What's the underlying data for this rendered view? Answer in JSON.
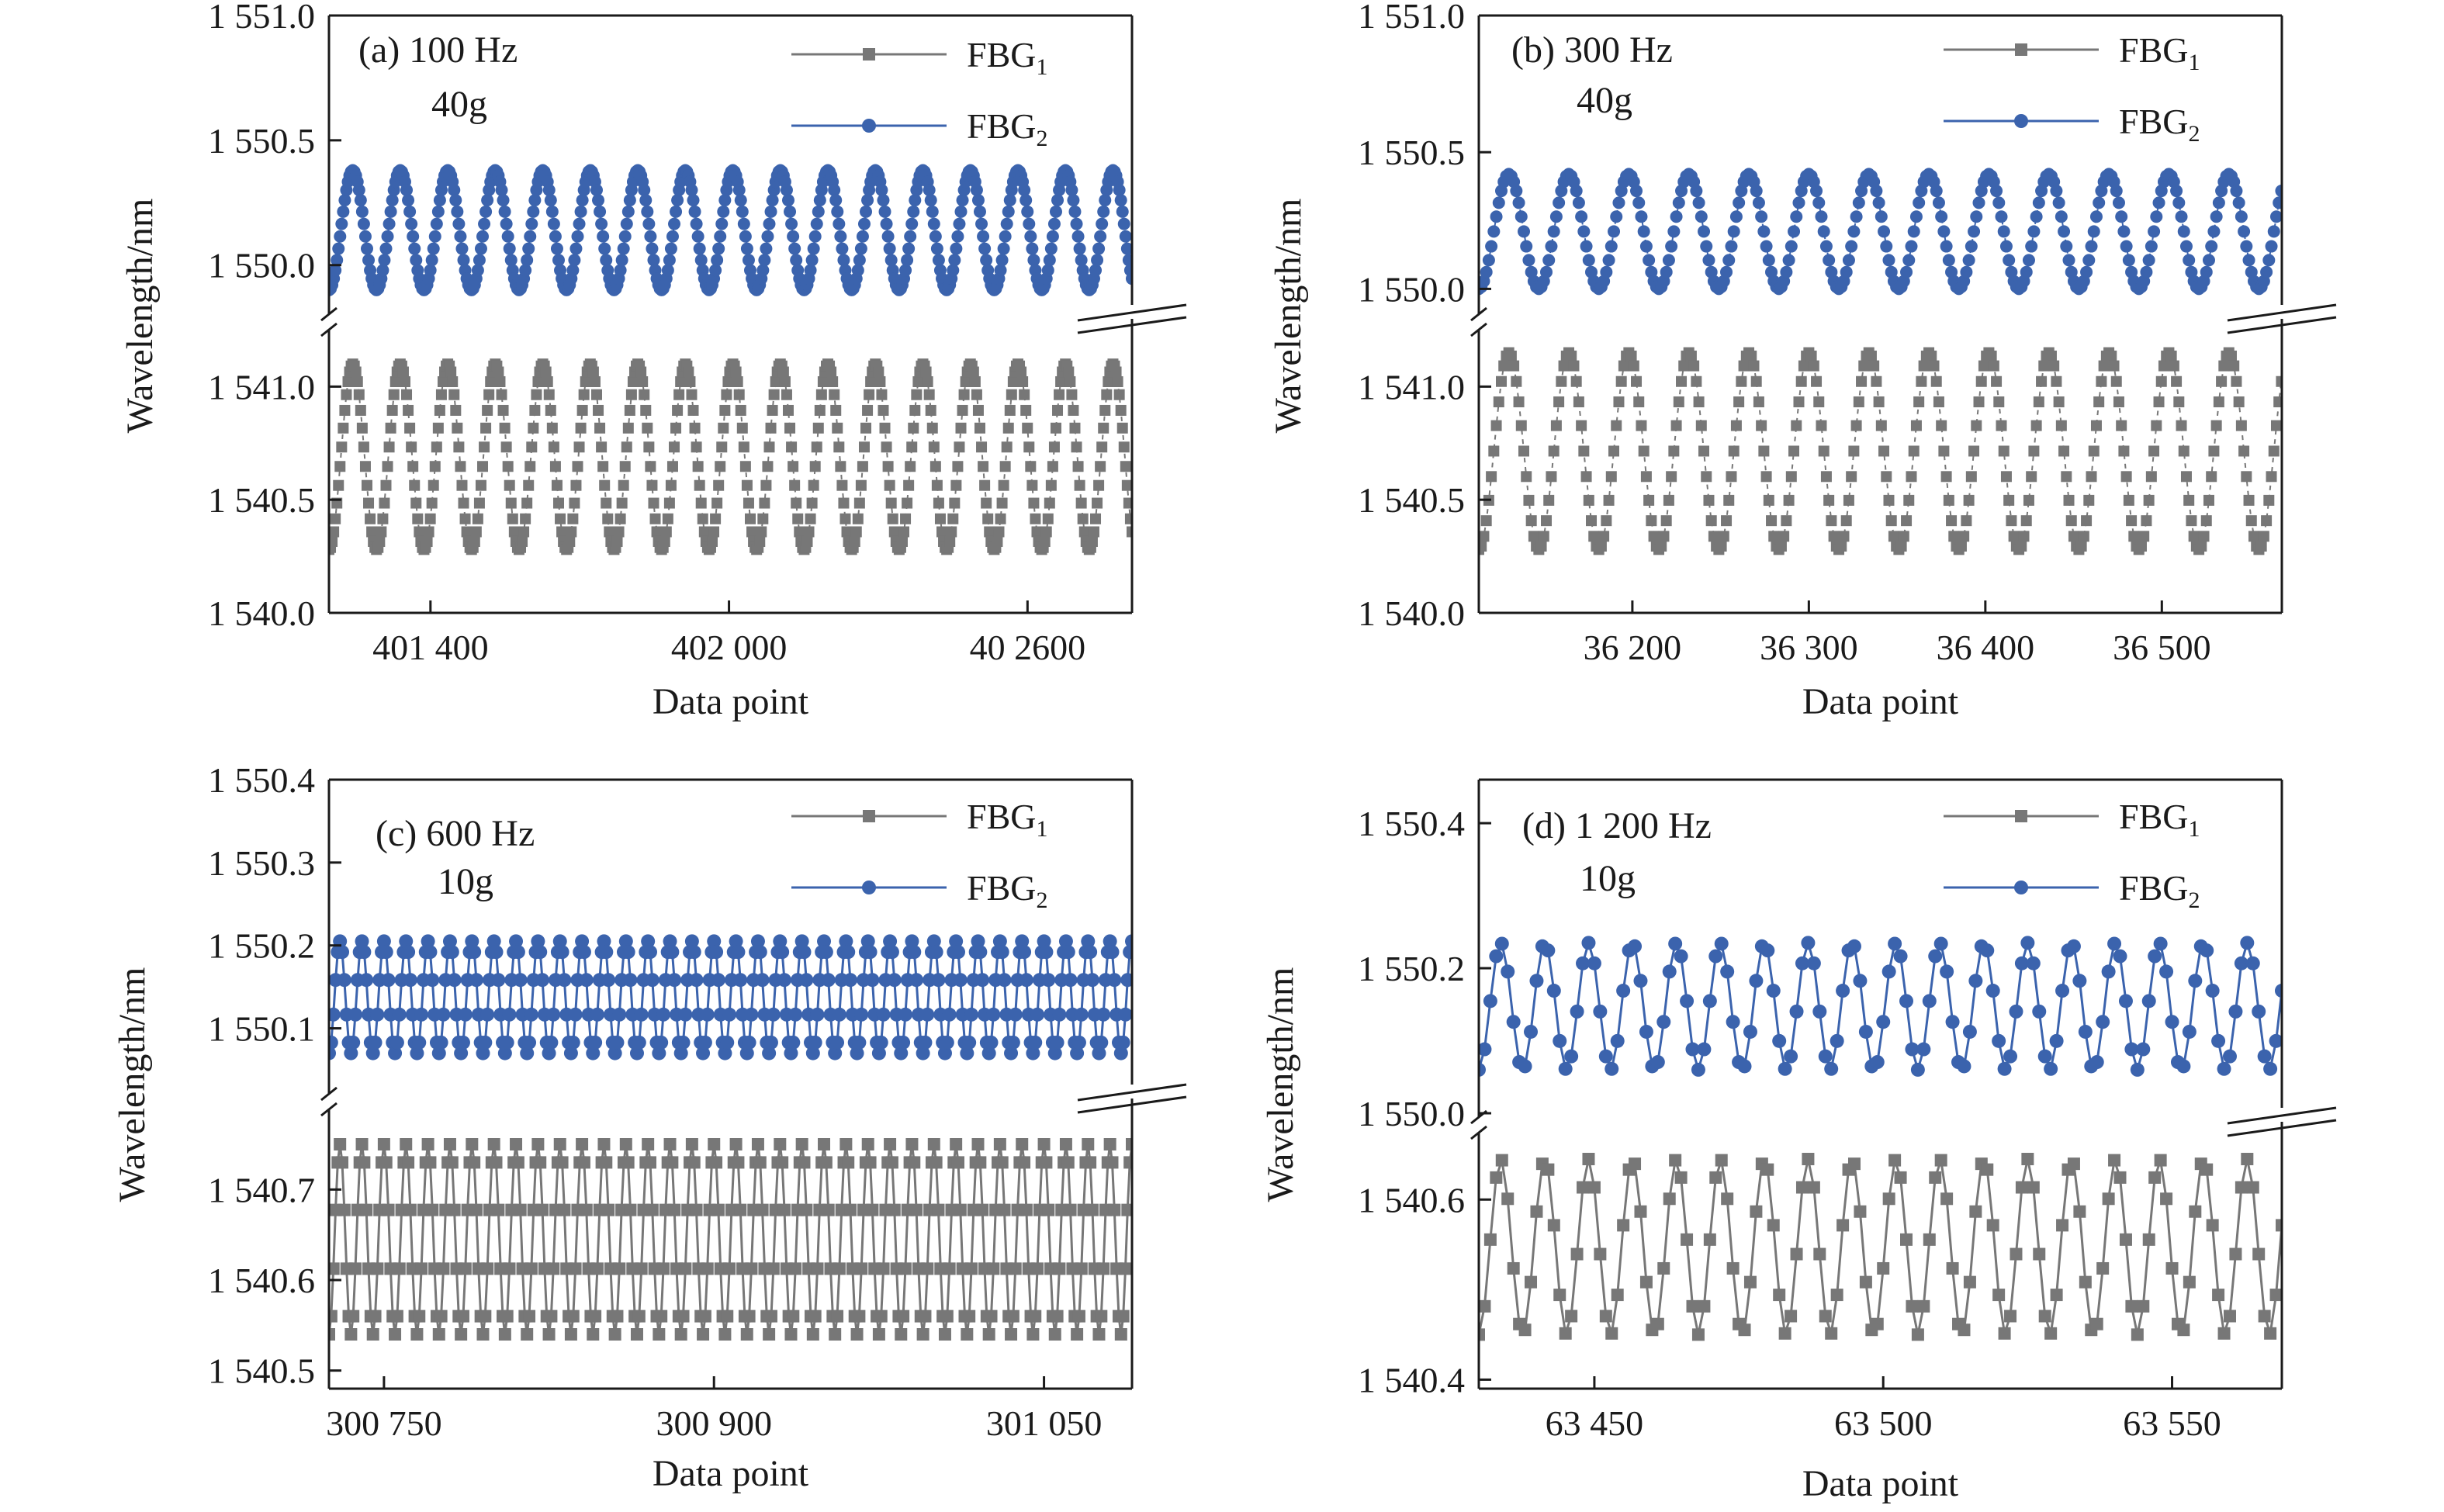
{
  "colors": {
    "fbg1": "#777777",
    "fbg2": "#3b63ad",
    "axis": "#1a1a1a"
  },
  "chart_data": [
    {
      "type": "line",
      "title": "(a) 100 Hz",
      "subtitle": "40g",
      "xlabel": "Data point",
      "ylabel": "Wavelength/nm",
      "broken_y_axis": true,
      "xlim": [
        401196,
        402810
      ],
      "ylim_upper": [
        1549.85,
        1551.0
      ],
      "ylim_lower": [
        1540.0,
        1541.2
      ],
      "xticks": [
        401400,
        402000,
        402600
      ],
      "xtick_labels": [
        "401 400",
        "402 000",
        "40 2600"
      ],
      "yticks_upper": [
        1550.0,
        1550.5,
        1551.0
      ],
      "ytick_labels_upper": [
        "1 550.0",
        "1 550.5",
        "1 551.0"
      ],
      "yticks_lower": [
        1540.0,
        1540.5,
        1541.0
      ],
      "ytick_labels_lower": [
        "1 540.0",
        "1 540.5",
        "1 541.0"
      ],
      "legend": "top-right",
      "series": [
        {
          "name": "FBG1",
          "name_main": "FBG",
          "name_sub": "1",
          "marker": "square",
          "min": 1540.28,
          "max": 1541.1,
          "period": 95.5,
          "phase": 0.0,
          "points_per_cycle": 30,
          "line": false
        },
        {
          "name": "FBG2",
          "name_main": "FBG",
          "name_sub": "2",
          "marker": "circle",
          "min": 1549.9,
          "max": 1550.38,
          "period": 95.5,
          "phase": 0.0,
          "points_per_cycle": 30,
          "line": false
        }
      ]
    },
    {
      "type": "line",
      "title": "(b) 300 Hz",
      "subtitle": "40g",
      "xlabel": "Data point",
      "ylabel": "Wavelength/nm",
      "broken_y_axis": true,
      "xlim": [
        36113,
        36568
      ],
      "ylim_upper": [
        1549.95,
        1551.0
      ],
      "ylim_lower": [
        1540.0,
        1541.2
      ],
      "xticks": [
        36200,
        36300,
        36400,
        36500
      ],
      "xtick_labels": [
        "36 200",
        "36 300",
        "36 400",
        "36 500"
      ],
      "yticks_upper": [
        1550.0,
        1550.5,
        1551.0
      ],
      "ytick_labels_upper": [
        "1 550.0",
        "1 550.5",
        "1 551.0"
      ],
      "yticks_lower": [
        1540.0,
        1540.5,
        1541.0
      ],
      "ytick_labels_lower": [
        "1 540.0",
        "1 540.5",
        "1 541.0"
      ],
      "legend": "top-right",
      "series": [
        {
          "name": "FBG1",
          "name_main": "FBG",
          "name_sub": "1",
          "marker": "square",
          "min": 1540.28,
          "max": 1541.15,
          "period": 34.0,
          "phase": 0.0,
          "points_per_cycle": 24,
          "line": false
        },
        {
          "name": "FBG2",
          "name_main": "FBG",
          "name_sub": "2",
          "marker": "circle",
          "min": 1550.0,
          "max": 1550.42,
          "period": 34.0,
          "phase": 0.0,
          "points_per_cycle": 24,
          "line": false
        }
      ]
    },
    {
      "type": "line",
      "title": "(c) 600 Hz",
      "subtitle": "10g",
      "xlabel": "Data point",
      "ylabel": "Wavelength/nm",
      "broken_y_axis": true,
      "xlim": [
        300725,
        301090
      ],
      "ylim_upper": [
        1550.035,
        1550.4
      ],
      "ylim_lower": [
        1540.48,
        1540.78
      ],
      "xticks": [
        300750,
        300900,
        301050
      ],
      "xtick_labels": [
        "300 750",
        "300 900",
        "301 050"
      ],
      "yticks_upper": [
        1550.1,
        1550.2,
        1550.3,
        1550.4
      ],
      "ytick_labels_upper": [
        "1 550.1",
        "1 550.2",
        "1 550.3",
        "1 550.4"
      ],
      "yticks_lower": [
        1540.5,
        1540.6,
        1540.7
      ],
      "ytick_labels_lower": [
        "1 540.5",
        "1 540.6",
        "1 540.7"
      ],
      "legend": "top-right",
      "series": [
        {
          "name": "FBG1",
          "name_main": "FBG",
          "name_sub": "1",
          "marker": "square",
          "min": 1540.54,
          "max": 1540.75,
          "period": 10.0,
          "phase": 0.0,
          "points_per_cycle": 10,
          "line": true
        },
        {
          "name": "FBG2",
          "name_main": "FBG",
          "name_sub": "2",
          "marker": "circle",
          "min": 1550.07,
          "max": 1550.205,
          "period": 10.0,
          "phase": 0.0,
          "points_per_cycle": 10,
          "line": true
        }
      ]
    },
    {
      "type": "line",
      "title": "(d) 1 200 Hz",
      "subtitle": "10g",
      "xlabel": "Data point",
      "ylabel": "Wavelength/nm",
      "broken_y_axis": true,
      "xlim": [
        63430,
        63569
      ],
      "ylim_upper": [
        1550.0,
        1550.46
      ],
      "ylim_lower": [
        1540.39,
        1540.67
      ],
      "xticks": [
        63450,
        63500,
        63550
      ],
      "xtick_labels": [
        "63 450",
        "63 500",
        "63 550"
      ],
      "yticks_upper": [
        1550.0,
        1550.2,
        1550.4
      ],
      "ytick_labels_upper": [
        "1 550.0",
        "1 550.2",
        "1 550.4"
      ],
      "yticks_lower": [
        1540.4,
        1540.6
      ],
      "ytick_labels_lower": [
        "1 540.4",
        "1 540.6"
      ],
      "legend": "top-right",
      "series": [
        {
          "name": "FBG1",
          "name_main": "FBG",
          "name_sub": "1",
          "marker": "square",
          "min": 1540.45,
          "max": 1540.645,
          "period": 7.6,
          "phase": 0.0,
          "points_per_cycle": 7.6,
          "line": true
        },
        {
          "name": "FBG2",
          "name_main": "FBG",
          "name_sub": "2",
          "marker": "circle",
          "min": 1550.06,
          "max": 1550.235,
          "period": 7.6,
          "phase": 0.0,
          "points_per_cycle": 7.6,
          "line": true
        }
      ]
    }
  ]
}
